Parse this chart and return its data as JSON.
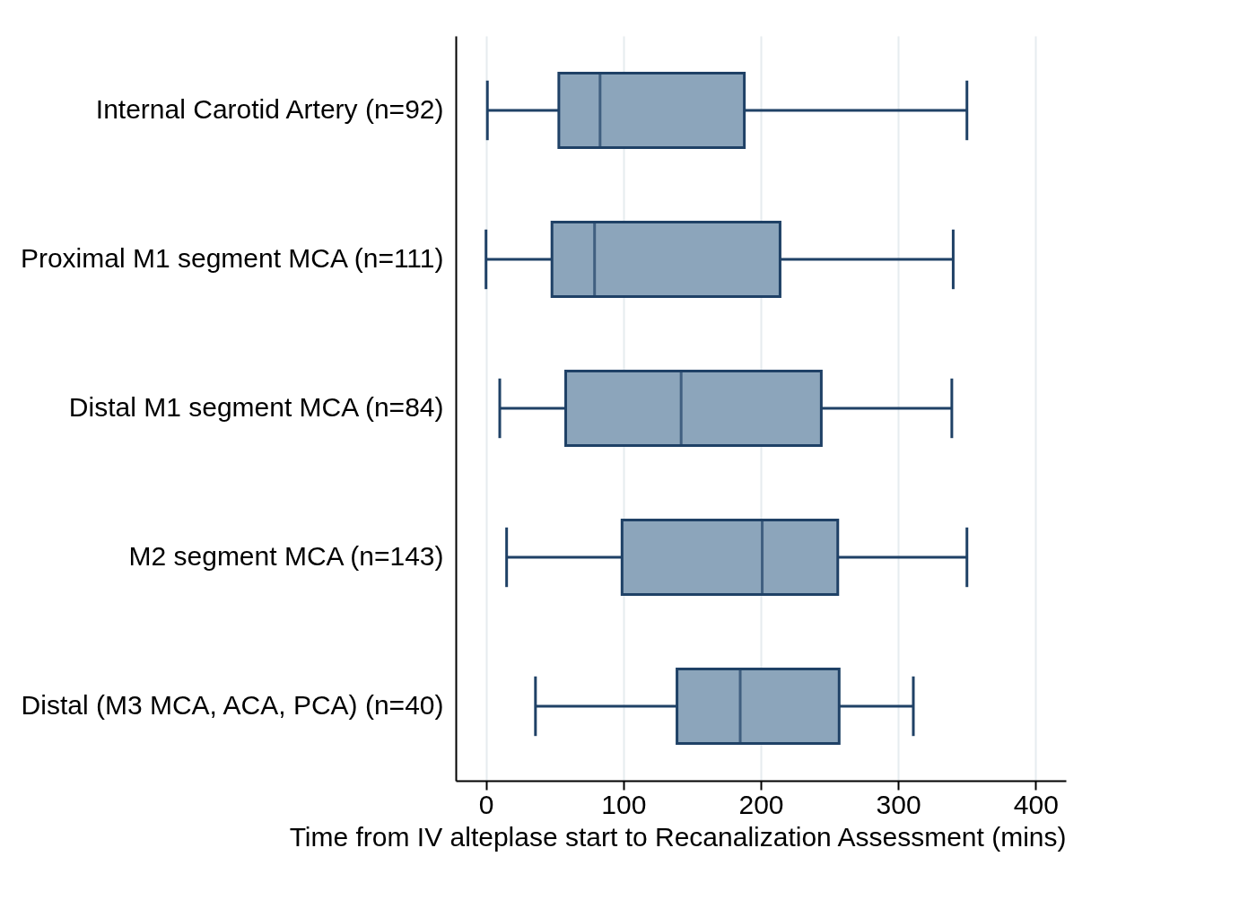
{
  "chart_data": {
    "type": "box",
    "orientation": "horizontal",
    "xlabel": "Time from IV alteplase start to Recanalization Assessment (mins)",
    "categories": [
      "Internal Carotid Artery (n=92)",
      "Proximal M1 segment MCA (n=111)",
      "Distal M1 segment MCA (n=84)",
      "M2 segment MCA (n=143)",
      "Distal (M3 MCA, ACA, PCA) (n=40)"
    ],
    "boxes": [
      {
        "low": 1,
        "q1": 53,
        "median": 83,
        "q3": 188,
        "high": 350
      },
      {
        "low": 0,
        "q1": 48,
        "median": 79,
        "q3": 214,
        "high": 340
      },
      {
        "low": 10,
        "q1": 58,
        "median": 142,
        "q3": 244,
        "high": 339
      },
      {
        "low": 15,
        "q1": 99,
        "median": 201,
        "q3": 256,
        "high": 350
      },
      {
        "low": 36,
        "q1": 139,
        "median": 185,
        "q3": 257,
        "high": 311
      }
    ],
    "color": "#8ca5bb",
    "xlim": [
      -22,
      422
    ],
    "xticks": [
      0,
      100,
      200,
      300,
      400
    ],
    "grid": "x"
  }
}
